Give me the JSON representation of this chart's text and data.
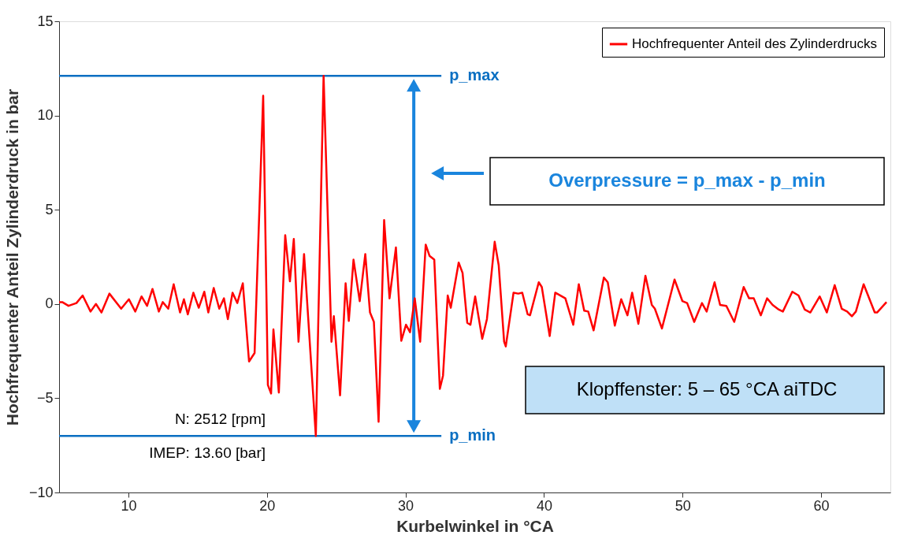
{
  "chart_data": {
    "type": "line",
    "xlabel": "Kurbelwinkel in °CA",
    "ylabel": "Hochfrequenter Anteil Zylinderdruck in bar",
    "xlim": [
      5,
      65
    ],
    "xticks": [
      10,
      20,
      30,
      40,
      50,
      60
    ],
    "ylim": [
      -10,
      15
    ],
    "yticks": [
      -10,
      -5,
      0,
      5,
      10,
      15
    ],
    "grid": false,
    "legend": "top right",
    "marker": "none",
    "line_style": "solid",
    "series": [
      {
        "name": "Hochfrequenter Anteil des Zylinderdrucks",
        "color": "#ff0000",
        "x": [
          5.0,
          5.23,
          5.68,
          6.25,
          6.7,
          7.27,
          7.66,
          8.06,
          8.63,
          9.48,
          10.04,
          10.5,
          10.95,
          11.35,
          11.74,
          12.2,
          12.48,
          12.88,
          13.27,
          13.73,
          14.01,
          14.29,
          14.69,
          15.08,
          15.48,
          15.77,
          16.16,
          16.56,
          16.9,
          17.18,
          17.52,
          17.86,
          18.26,
          18.71,
          19.11,
          19.73,
          20.07,
          20.3,
          20.47,
          20.86,
          21.32,
          21.66,
          21.94,
          22.28,
          22.68,
          23.53,
          24.09,
          24.66,
          24.83,
          25.28,
          25.68,
          25.91,
          26.25,
          26.7,
          27.1,
          27.44,
          27.72,
          28.06,
          28.46,
          28.85,
          29.31,
          29.7,
          30.04,
          30.33,
          30.67,
          31.06,
          31.46,
          31.74,
          32.08,
          32.48,
          32.71,
          33.05,
          33.27,
          33.84,
          34.12,
          34.46,
          34.69,
          35.03,
          35.54,
          35.88,
          36.44,
          36.73,
          37.12,
          37.24,
          37.8,
          38.14,
          38.43,
          38.82,
          38.99,
          39.62,
          39.84,
          40.41,
          40.81,
          41.54,
          42.11,
          42.51,
          42.9,
          43.19,
          43.58,
          44.32,
          44.6,
          45.11,
          45.57,
          46.02,
          46.36,
          46.81,
          47.32,
          47.78,
          48.0,
          48.51,
          49.42,
          49.99,
          50.33,
          50.84,
          51.4,
          51.74,
          52.31,
          52.71,
          53.16,
          53.73,
          54.41,
          54.8,
          55.14,
          55.65,
          56.1,
          56.5,
          56.95,
          57.24,
          57.92,
          58.37,
          58.82,
          59.22,
          59.9,
          60.41,
          60.98,
          61.49,
          61.88,
          62.22,
          62.51,
          63.07,
          63.87,
          64.04,
          64.72
        ],
        "values": [
          0.1,
          0.1,
          -0.1,
          0.05,
          0.45,
          -0.4,
          0,
          -0.45,
          0.55,
          -0.25,
          0.25,
          -0.4,
          0.4,
          -0.1,
          0.8,
          -0.4,
          0.1,
          -0.25,
          1.05,
          -0.45,
          0.25,
          -0.55,
          0.6,
          -0.2,
          0.65,
          -0.45,
          0.85,
          -0.25,
          0.3,
          -0.8,
          0.6,
          0.05,
          1.1,
          -3.05,
          -2.6,
          11.05,
          -4.3,
          -4.75,
          -1.35,
          -4.7,
          3.65,
          1.2,
          3.45,
          -2.0,
          2.65,
          -7.0,
          12.1,
          -2.0,
          -0.65,
          -4.85,
          1.1,
          -0.9,
          2.35,
          0.15,
          2.65,
          -0.45,
          -0.95,
          -6.25,
          4.45,
          0.3,
          3.0,
          -1.95,
          -1.1,
          -1.5,
          0.3,
          -2.0,
          3.15,
          2.55,
          2.35,
          -4.5,
          -3.8,
          0.45,
          -0.2,
          2.2,
          1.65,
          -1.0,
          -1.1,
          0.4,
          -1.85,
          -0.8,
          3.3,
          2.05,
          -2.0,
          -2.25,
          0.6,
          0.55,
          0.6,
          -0.55,
          -0.6,
          1.15,
          0.9,
          -1.7,
          0.6,
          0.3,
          -1.1,
          1.05,
          -0.35,
          -0.4,
          -1.4,
          1.4,
          1.15,
          -1.15,
          0.25,
          -0.6,
          0.6,
          -1.05,
          1.5,
          -0.05,
          -0.25,
          -1.3,
          1.3,
          0.15,
          0.05,
          -0.95,
          0.05,
          -0.4,
          1.15,
          -0.05,
          -0.1,
          -0.95,
          0.9,
          0.3,
          0.3,
          -0.6,
          0.3,
          -0.05,
          -0.3,
          -0.4,
          0.65,
          0.45,
          -0.3,
          -0.45,
          0.4,
          -0.45,
          1.0,
          -0.25,
          -0.4,
          -0.65,
          -0.4,
          1.05,
          -0.45,
          -0.45,
          0.1
        ]
      }
    ],
    "ref_lines": [
      {
        "axis": "y",
        "value": 12.1,
        "label": "p_max",
        "color": "#0a6fc2"
      },
      {
        "axis": "y",
        "value": -7.0,
        "label": "p_min",
        "color": "#0a6fc2"
      }
    ],
    "annotations": [
      "N: 2512 [rpm]",
      "IMEP: 13.60 [bar]",
      "Overpressure = p_max  - p_min",
      "Klopffenster: 5 – 65 °CA aiTDC"
    ]
  }
}
